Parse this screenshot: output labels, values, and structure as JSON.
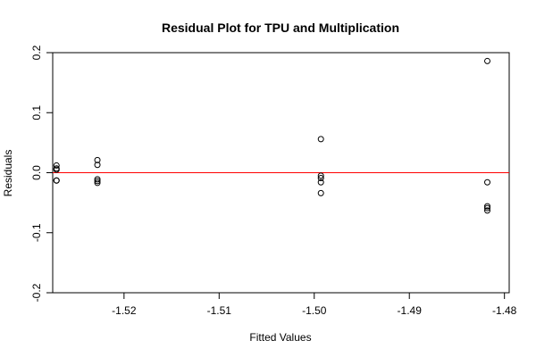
{
  "chart_data": {
    "type": "scatter",
    "title": "Residual Plot for TPU and Multiplication",
    "xlabel": "Fitted Values",
    "ylabel": "Residuals",
    "xlim": [
      -1.5275,
      -1.4795
    ],
    "ylim": [
      -0.2,
      0.2
    ],
    "x_ticks": [
      -1.52,
      -1.51,
      -1.5,
      -1.49,
      -1.48
    ],
    "x_tick_labels": [
      "-1.52",
      "-1.51",
      "-1.50",
      "-1.49",
      "-1.48"
    ],
    "y_ticks": [
      -0.2,
      -0.1,
      0.0,
      0.1,
      0.2
    ],
    "y_tick_labels": [
      "-0.2",
      "-0.1",
      "0.0",
      "0.1",
      "0.2"
    ],
    "reference_line": {
      "y": 0,
      "color": "#ff0000"
    },
    "point_color": "#000000",
    "points": [
      {
        "x": -1.5271,
        "y": 0.012
      },
      {
        "x": -1.5271,
        "y": 0.007
      },
      {
        "x": -1.5271,
        "y": 0.005
      },
      {
        "x": -1.5271,
        "y": -0.013
      },
      {
        "x": -1.5271,
        "y": -0.013
      },
      {
        "x": -1.5228,
        "y": 0.021
      },
      {
        "x": -1.5228,
        "y": 0.013
      },
      {
        "x": -1.5228,
        "y": -0.011
      },
      {
        "x": -1.5228,
        "y": -0.014
      },
      {
        "x": -1.5228,
        "y": -0.017
      },
      {
        "x": -1.4993,
        "y": 0.056
      },
      {
        "x": -1.4993,
        "y": -0.005
      },
      {
        "x": -1.4993,
        "y": -0.009
      },
      {
        "x": -1.4993,
        "y": -0.016
      },
      {
        "x": -1.4993,
        "y": -0.034
      },
      {
        "x": -1.4818,
        "y": 0.186
      },
      {
        "x": -1.4818,
        "y": -0.016
      },
      {
        "x": -1.4818,
        "y": -0.056
      },
      {
        "x": -1.4818,
        "y": -0.059
      },
      {
        "x": -1.4818,
        "y": -0.063
      }
    ]
  }
}
